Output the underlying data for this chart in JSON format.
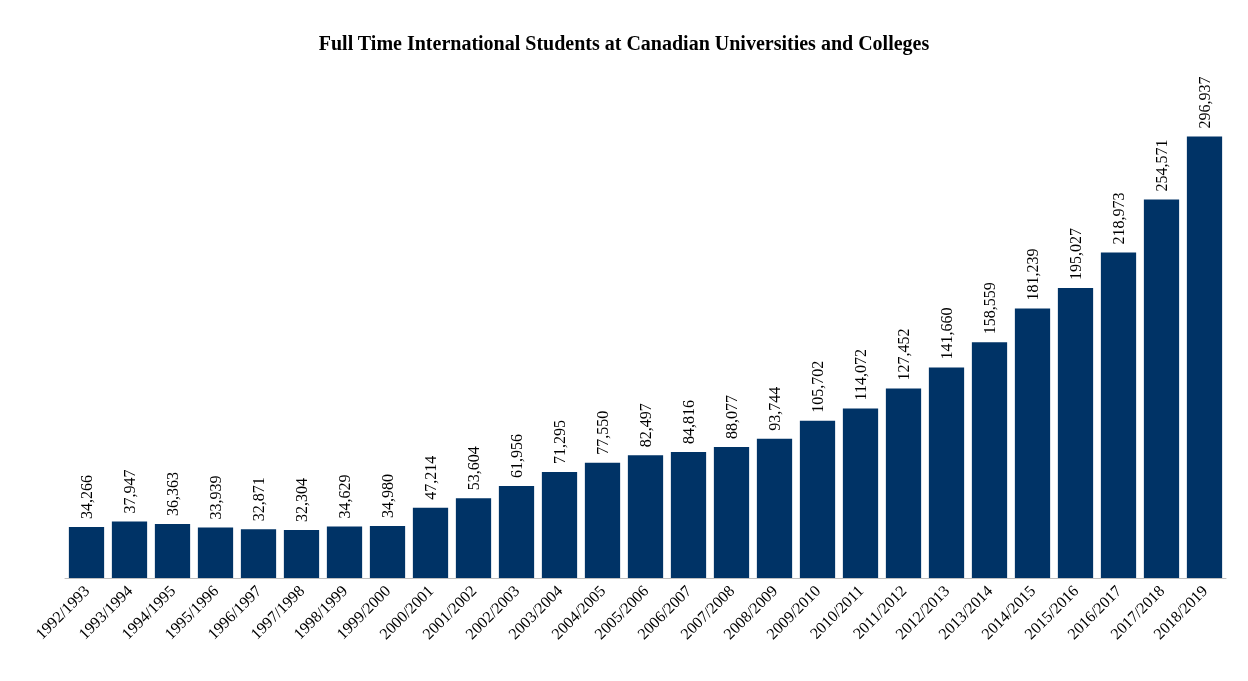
{
  "chart_data": {
    "type": "bar",
    "title": "Full Time International Students at Canadian Universities and Colleges",
    "categories": [
      "1992/1993",
      "1993/1994",
      "1994/1995",
      "1995/1996",
      "1996/1997",
      "1997/1998",
      "1998/1999",
      "1999/2000",
      "2000/2001",
      "2001/2002",
      "2002/2003",
      "2003/2004",
      "2004/2005",
      "2005/2006",
      "2006/2007",
      "2007/2008",
      "2008/2009",
      "2009/2010",
      "2010/2011",
      "2011/2012",
      "2012/2013",
      "2013/2014",
      "2014/2015",
      "2015/2016",
      "2016/2017",
      "2017/2018",
      "2018/2019"
    ],
    "values": [
      34266,
      37947,
      36363,
      33939,
      32871,
      32304,
      34629,
      34980,
      47214,
      53604,
      61956,
      71295,
      77550,
      82497,
      84816,
      88077,
      93744,
      105702,
      114072,
      127452,
      141660,
      158559,
      181239,
      195027,
      218973,
      254571,
      296937
    ],
    "value_labels": [
      "34,266",
      "37,947",
      "36,363",
      "33,939",
      "32,871",
      "32,304",
      "34,629",
      "34,980",
      "47,214",
      "53,604",
      "61,956",
      "71,295",
      "77,550",
      "82,497",
      "84,816",
      "88,077",
      "93,744",
      "105,702",
      "114,072",
      "127,452",
      "141,660",
      "158,559",
      "181,239",
      "195,027",
      "218,973",
      "254,571",
      "296,937"
    ],
    "color": "#003366",
    "tick_labels": "x"
  }
}
